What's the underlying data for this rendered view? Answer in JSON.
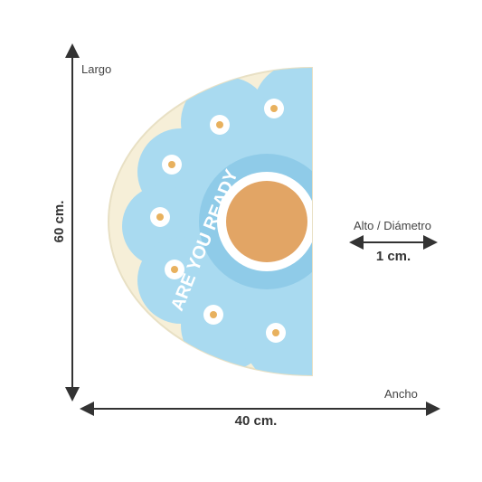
{
  "labels": {
    "length_name": "Largo",
    "length_value": "60 cm.",
    "height_name": "Alto / Diámetro",
    "height_value": "1 cm.",
    "width_name": "Ancho",
    "width_value": "40 cm."
  },
  "product": {
    "print_text": "ARE YOU READY"
  }
}
